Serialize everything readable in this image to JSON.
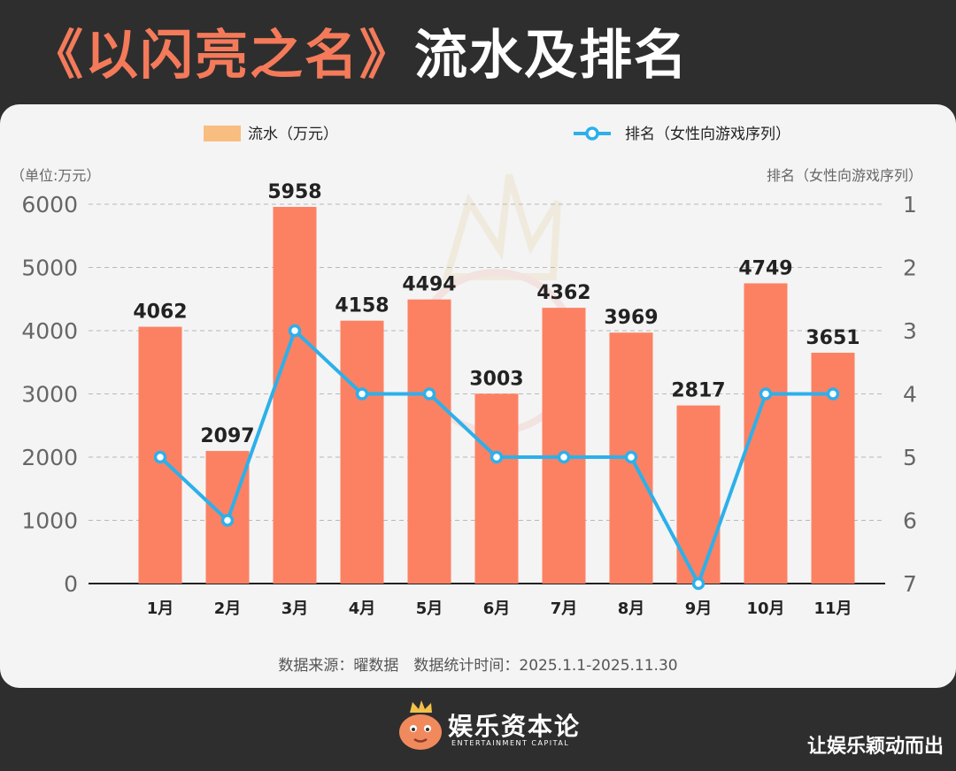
{
  "header": {
    "title_highlight": "《以闪亮之名》",
    "title_rest": "流水及排名"
  },
  "colors": {
    "bar": "#fc8163",
    "line": "#2db0ea",
    "legend_bar": "#f9bd80",
    "text": "#222222",
    "axis_text": "#666666"
  },
  "legend": {
    "bar_label": "流水（万元）",
    "line_label": "排名（女性向游戏序列）"
  },
  "chart_data": {
    "type": "bar",
    "categories": [
      "1月",
      "2月",
      "3月",
      "4月",
      "5月",
      "6月",
      "7月",
      "8月",
      "9月",
      "10月",
      "11月"
    ],
    "series": [
      {
        "name": "流水（万元）",
        "type": "bar",
        "values": [
          4062,
          2097,
          5958,
          4158,
          4494,
          3003,
          4362,
          3969,
          2817,
          4749,
          3651
        ]
      },
      {
        "name": "排名（女性向游戏序列）",
        "type": "line",
        "values": [
          5,
          6,
          3,
          4,
          4,
          5,
          5,
          5,
          7,
          4,
          4
        ]
      }
    ],
    "y_left": {
      "label": "（单位:万元）",
      "range": [
        0,
        6000
      ],
      "ticks": [
        "0",
        "1000",
        "2000",
        "3000",
        "4000",
        "5000",
        "6000"
      ]
    },
    "y_right": {
      "label": "排名（女性向游戏序列）",
      "range": [
        1,
        7
      ],
      "inverted": true,
      "ticks": [
        "1",
        "2",
        "3",
        "4",
        "5",
        "6",
        "7"
      ]
    },
    "grid": true,
    "legend_position": "top"
  },
  "source_note": "数据来源：曜数据　数据统计时间：2025.1.1-2025.11.30",
  "brand": {
    "name": "娱乐资本论",
    "subtitle": "ENTERTAINMENT CAPITAL"
  },
  "slogan": "让娱乐颖动而出"
}
